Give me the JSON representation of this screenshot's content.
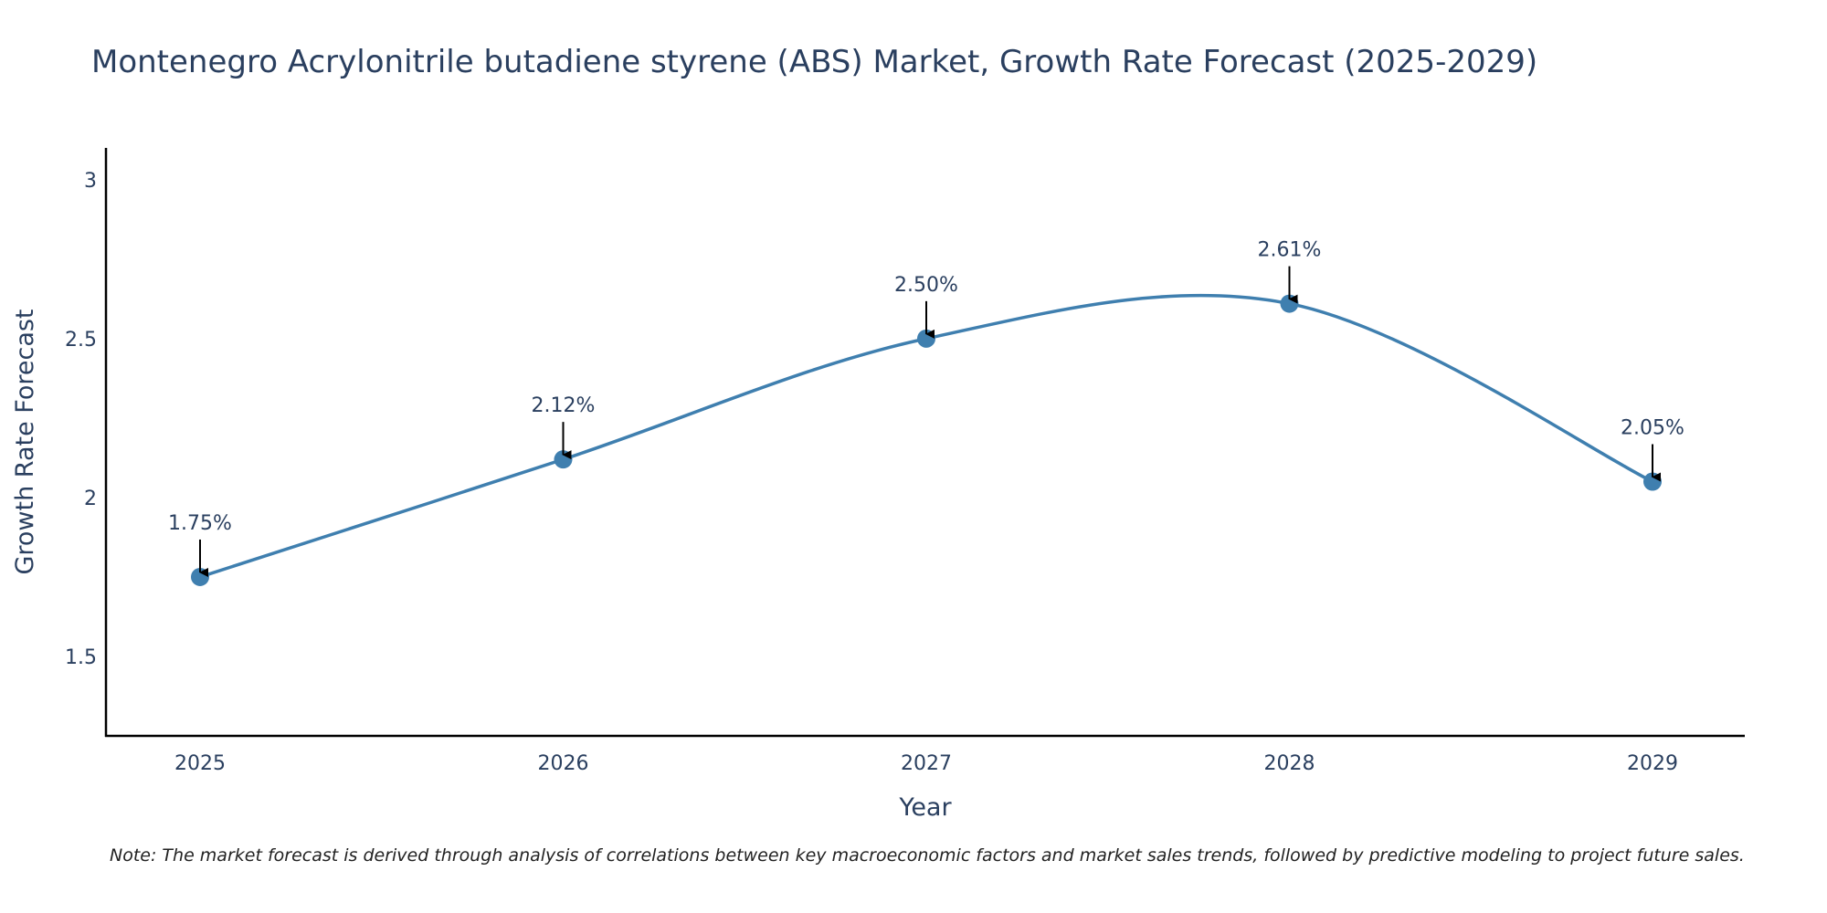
{
  "chart_data": {
    "type": "line",
    "title": "Montenegro Acrylonitrile butadiene styrene (ABS) Market, Growth Rate Forecast (2025-2029)",
    "xlabel": "Year",
    "ylabel": "Growth Rate Forecast",
    "categories": [
      "2025",
      "2026",
      "2027",
      "2028",
      "2029"
    ],
    "values": [
      1.75,
      2.12,
      2.5,
      2.61,
      2.05
    ],
    "data_labels": [
      "1.75%",
      "2.12%",
      "2.50%",
      "2.61%",
      "2.05%"
    ],
    "ylim": [
      1.25,
      3.1
    ],
    "yticks": [
      1.5,
      2,
      2.5,
      3
    ],
    "ytick_labels": [
      "1.5",
      "2",
      "2.5",
      "3"
    ],
    "grid": false,
    "line_color": "#3f7faf",
    "marker_color": "#3f7faf",
    "arrow_color": "#000000",
    "note": "Note: The market forecast is derived through analysis of correlations between key macroeconomic factors and market sales trends, followed by predictive modeling to project future sales."
  }
}
